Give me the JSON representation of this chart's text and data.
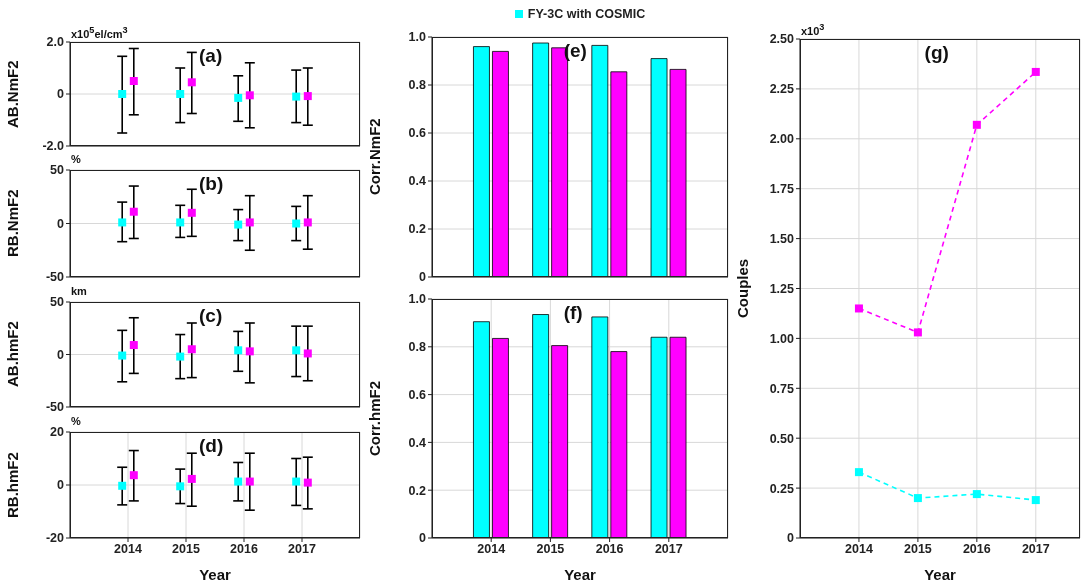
{
  "chart_data": [
    {
      "type": "scatter",
      "ylabel": "AB.NmF2",
      "categories": [
        "2014",
        "2015",
        "2016",
        "2017"
      ],
      "ylim": [
        -2,
        2
      ],
      "yticks": [
        {
          "value": -2,
          "label": "-2.0"
        },
        0,
        {
          "value": 2,
          "label": "2.0"
        }
      ],
      "grid": true,
      "marker": "square",
      "tick_labels": "y",
      "annotations": [
        "x10$^{5}$el/cm$^{3}$",
        "(a)"
      ],
      "series": [
        {
          "color": "#00ffff",
          "values": [
            0,
            0,
            -0.15,
            -0.1
          ],
          "errors": [
            [
              -1.5,
              1.45
            ],
            [
              -1.1,
              1.0
            ],
            [
              -1.05,
              0.7
            ],
            [
              -1.1,
              0.92
            ]
          ]
        },
        {
          "color": "#ff00ff",
          "values": [
            0.5,
            0.45,
            -0.05,
            -0.08
          ],
          "errors": [
            [
              -0.8,
              1.75
            ],
            [
              -0.75,
              1.6
            ],
            [
              -1.3,
              1.2
            ],
            [
              -1.2,
              1.0
            ]
          ]
        }
      ]
    },
    {
      "type": "scatter",
      "ylabel": "RB.NmF2",
      "categories": [
        "2014",
        "2015",
        "2016",
        "2017"
      ],
      "ylim": [
        -50,
        50
      ],
      "yticks": [
        -50,
        0,
        50
      ],
      "grid": true,
      "marker": "square",
      "tick_labels": "y",
      "annotations": [
        "%",
        "(b)"
      ],
      "series": [
        {
          "color": "#00ffff",
          "values": [
            1,
            1,
            -1,
            0
          ],
          "errors": [
            [
              -17,
              20
            ],
            [
              -13,
              17
            ],
            [
              -16,
              13
            ],
            [
              -16,
              16
            ]
          ]
        },
        {
          "color": "#ff00ff",
          "values": [
            11,
            10,
            1,
            1
          ],
          "errors": [
            [
              -14,
              35
            ],
            [
              -12,
              32
            ],
            [
              -25,
              26
            ],
            [
              -24,
              26
            ]
          ]
        }
      ]
    },
    {
      "type": "scatter",
      "ylabel": "AB.hmF2",
      "categories": [
        "2014",
        "2015",
        "2016",
        "2017"
      ],
      "ylim": [
        -50,
        50
      ],
      "yticks": [
        -50,
        0,
        50
      ],
      "grid": true,
      "marker": "square",
      "tick_labels": "y",
      "annotations": [
        "km",
        "(c)"
      ],
      "series": [
        {
          "color": "#00ffff",
          "values": [
            -1,
            -2,
            4,
            4
          ],
          "errors": [
            [
              -26,
              23
            ],
            [
              -23,
              19
            ],
            [
              -16,
              22
            ],
            [
              -21,
              27
            ]
          ]
        },
        {
          "color": "#ff00ff",
          "values": [
            9,
            5,
            3,
            1
          ],
          "errors": [
            [
              -18,
              35
            ],
            [
              -22,
              30
            ],
            [
              -27,
              30
            ],
            [
              -25,
              27
            ]
          ]
        }
      ]
    },
    {
      "type": "scatter",
      "ylabel": "RB.hmF2",
      "xlabel": "Year",
      "categories": [
        "2014",
        "2015",
        "2016",
        "2017"
      ],
      "ylim": [
        -20,
        20
      ],
      "yticks": [
        -20,
        0,
        20
      ],
      "grid": true,
      "marker": "square",
      "annotations": [
        "%",
        "(d)"
      ],
      "series": [
        {
          "color": "#00ffff",
          "values": [
            -0.3,
            -0.5,
            1.3,
            1.3
          ],
          "errors": [
            [
              -7.5,
              6.7
            ],
            [
              -7,
              6
            ],
            [
              -6,
              8.5
            ],
            [
              -7.7,
              10
            ]
          ]
        },
        {
          "color": "#ff00ff",
          "values": [
            3.7,
            2.3,
            1.3,
            0.9
          ],
          "errors": [
            [
              -6,
              13
            ],
            [
              -8,
              12
            ],
            [
              -9.5,
              12
            ],
            [
              -9,
              10.5
            ]
          ]
        }
      ]
    },
    {
      "type": "bar",
      "ylabel": "Corr.NmF2",
      "categories": [
        "2014",
        "2015",
        "2016",
        "2017"
      ],
      "ylim": [
        0,
        1
      ],
      "yticks": [
        0,
        0.2,
        0.4,
        0.6,
        0.8,
        {
          "value": 1,
          "label": "1.0"
        }
      ],
      "grid": true,
      "tick_labels": "y",
      "legend": "top",
      "annotations": [
        "(e)"
      ],
      "series": [
        {
          "name": "FY-3C with COSMIC",
          "color": "#00ffff",
          "values": [
            0.96,
            0.975,
            0.965,
            0.91
          ]
        },
        {
          "color": "#ff00ff",
          "values": [
            0.94,
            0.955,
            0.855,
            0.865
          ]
        }
      ]
    },
    {
      "type": "bar",
      "ylabel": "Corr.hmF2",
      "xlabel": "Year",
      "categories": [
        "2014",
        "2015",
        "2016",
        "2017"
      ],
      "ylim": [
        0,
        1
      ],
      "yticks": [
        0,
        0.2,
        0.4,
        0.6,
        0.8,
        {
          "value": 1,
          "label": "1.0"
        }
      ],
      "grid": true,
      "annotations": [
        "(f)"
      ],
      "series": [
        {
          "color": "#00ffff",
          "values": [
            0.905,
            0.935,
            0.925,
            0.84
          ]
        },
        {
          "color": "#ff00ff",
          "values": [
            0.835,
            0.805,
            0.78,
            0.84
          ]
        }
      ]
    },
    {
      "type": "line",
      "ylabel": "Couples",
      "xlabel": "Year",
      "categories": [
        "2014",
        "2015",
        "2016",
        "2017"
      ],
      "ylim": [
        0,
        2.5
      ],
      "yticks": [
        0,
        {
          "value": 0.25,
          "label": "0.25"
        },
        {
          "value": 0.5,
          "label": "0.50"
        },
        {
          "value": 0.75,
          "label": "0.75"
        },
        {
          "value": 1,
          "label": "1.00"
        },
        {
          "value": 1.25,
          "label": "1.25"
        },
        {
          "value": 1.5,
          "label": "1.50"
        },
        {
          "value": 1.75,
          "label": "1.75"
        },
        {
          "value": 2,
          "label": "2.00"
        },
        {
          "value": 2.25,
          "label": "2.25"
        },
        {
          "value": 2.5,
          "label": "2.50"
        }
      ],
      "grid": true,
      "marker": "square",
      "line_style": "dashed",
      "annotations": [
        "x10$^{3}$",
        "(g)"
      ],
      "series": [
        {
          "color": "#00ffff",
          "values": [
            0.33,
            0.2,
            0.22,
            0.19
          ]
        },
        {
          "color": "#ff00ff",
          "values": [
            1.15,
            1.03,
            2.07,
            2.335
          ]
        }
      ]
    }
  ]
}
